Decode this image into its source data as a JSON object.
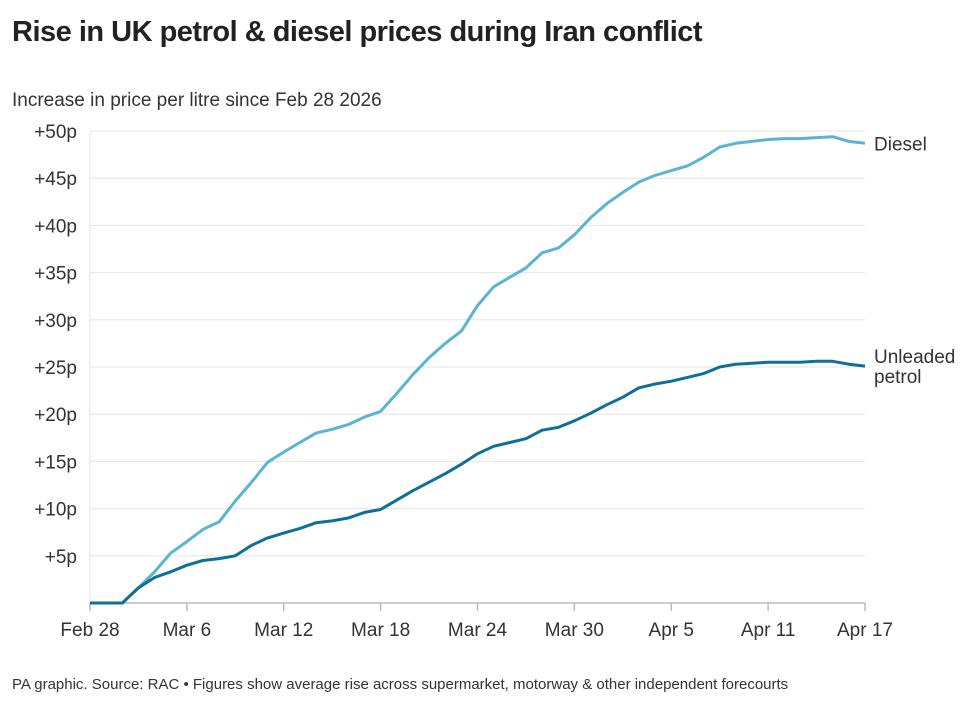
{
  "chart_data": {
    "type": "line",
    "title": "Rise in UK petrol & diesel prices during Iran conflict",
    "subtitle": "Increase in price per litre since Feb 28 2026",
    "source": "PA graphic. Source: RAC • Figures show average rise across supermarket, motorway & other independent forecourts",
    "x_ticks": [
      "Feb 28",
      "Mar 6",
      "Mar 12",
      "Mar 18",
      "Mar 24",
      "Mar 30",
      "Apr 5",
      "Apr 11",
      "Apr 17"
    ],
    "y_ticks": [
      "+5p",
      "+10p",
      "+15p",
      "+20p",
      "+25p",
      "+30p",
      "+35p",
      "+40p",
      "+45p",
      "+50p"
    ],
    "ylim": [
      0,
      50
    ],
    "grid": true,
    "x": [
      "Feb 28",
      "Mar 1",
      "Mar 2",
      "Mar 3",
      "Mar 4",
      "Mar 5",
      "Mar 6",
      "Mar 7",
      "Mar 8",
      "Mar 9",
      "Mar 10",
      "Mar 11",
      "Mar 12",
      "Mar 13",
      "Mar 14",
      "Mar 15",
      "Mar 16",
      "Mar 17",
      "Mar 18",
      "Mar 19",
      "Mar 20",
      "Mar 21",
      "Mar 22",
      "Mar 23",
      "Mar 24",
      "Mar 25",
      "Mar 26",
      "Mar 27",
      "Mar 28",
      "Mar 29",
      "Mar 30",
      "Mar 31",
      "Apr 1",
      "Apr 2",
      "Apr 3",
      "Apr 4",
      "Apr 5",
      "Apr 6",
      "Apr 7",
      "Apr 8",
      "Apr 9",
      "Apr 10",
      "Apr 11",
      "Apr 12",
      "Apr 13",
      "Apr 14",
      "Apr 15",
      "Apr 16",
      "Apr 17"
    ],
    "series": [
      {
        "name": "Diesel",
        "color": "#5bb3d5",
        "values": [
          0,
          0,
          0,
          1.6,
          3.3,
          5.3,
          6.5,
          7.8,
          8.6,
          10.8,
          12.8,
          14.9,
          16,
          17,
          18,
          18.4,
          18.9,
          19.7,
          20.3,
          22.2,
          24.2,
          26,
          27.5,
          28.8,
          31.5,
          33.5,
          34.5,
          35.5,
          37.1,
          37.6,
          39,
          40.8,
          42.3,
          43.5,
          44.6,
          45.3,
          45.8,
          46.3,
          47.2,
          48.3,
          48.7,
          48.9,
          49.1,
          49.2,
          49.2,
          49.3,
          49.4,
          48.9,
          48.7
        ]
      },
      {
        "name": "Unleaded petrol",
        "label_lines": [
          "Unleaded",
          "petrol"
        ],
        "color": "#0f6f97",
        "values": [
          0,
          0,
          0,
          1.6,
          2.7,
          3.3,
          4.0,
          4.5,
          4.7,
          5.0,
          6.1,
          6.9,
          7.4,
          7.9,
          8.5,
          8.7,
          9.0,
          9.6,
          9.9,
          10.9,
          11.9,
          12.8,
          13.7,
          14.7,
          15.8,
          16.6,
          17.0,
          17.4,
          18.3,
          18.6,
          19.3,
          20.1,
          21.0,
          21.8,
          22.8,
          23.2,
          23.5,
          23.9,
          24.3,
          25.0,
          25.3,
          25.4,
          25.5,
          25.5,
          25.5,
          25.6,
          25.6,
          25.3,
          25.1
        ]
      }
    ]
  }
}
